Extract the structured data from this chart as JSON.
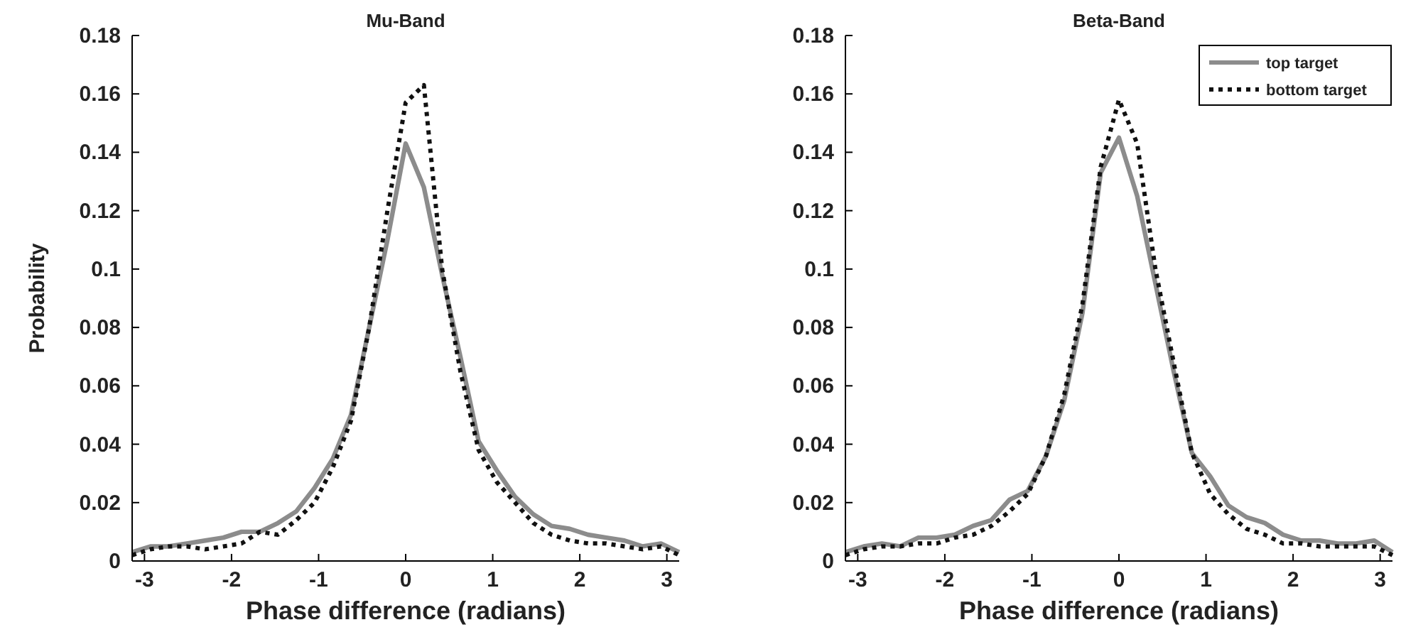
{
  "chart_data": [
    {
      "type": "line",
      "title": "Mu-Band",
      "xlabel": "Phase difference (radians)",
      "ylabel": "Probability",
      "x": [
        -3.1416,
        -2.9322,
        -2.7227,
        -2.5133,
        -2.3038,
        -2.0944,
        -1.885,
        -1.6755,
        -1.4661,
        -1.2566,
        -1.0472,
        -0.8378,
        -0.6283,
        -0.4189,
        -0.2094,
        0,
        0.2094,
        0.4189,
        0.6283,
        0.8378,
        1.0472,
        1.2566,
        1.4661,
        1.6755,
        1.885,
        2.0944,
        2.3038,
        2.5133,
        2.7227,
        2.9322,
        3.1416
      ],
      "series": [
        {
          "color": "#8c8c8c",
          "line_style": "solid",
          "values": [
            0.003,
            0.005,
            0.005,
            0.006,
            0.007,
            0.008,
            0.01,
            0.01,
            0.013,
            0.017,
            0.025,
            0.035,
            0.05,
            0.08,
            0.11,
            0.143,
            0.128,
            0.098,
            0.07,
            0.041,
            0.031,
            0.022,
            0.016,
            0.012,
            0.011,
            0.009,
            0.008,
            0.007,
            0.005,
            0.006,
            0.003
          ]
        },
        {
          "color": "#111111",
          "line_style": "dotted",
          "values": [
            0.002,
            0.004,
            0.005,
            0.005,
            0.004,
            0.005,
            0.006,
            0.01,
            0.009,
            0.014,
            0.02,
            0.032,
            0.048,
            0.08,
            0.12,
            0.157,
            0.163,
            0.1,
            0.065,
            0.038,
            0.027,
            0.02,
            0.013,
            0.009,
            0.007,
            0.006,
            0.006,
            0.005,
            0.004,
            0.005,
            0.002
          ]
        }
      ],
      "xlim": [
        -3.1416,
        3.1416
      ],
      "xticks": [
        -3,
        -2,
        -1,
        0,
        1,
        2,
        3
      ],
      "ylim": [
        0,
        0.18
      ],
      "yticks": [
        0,
        0.02,
        0.04,
        0.06,
        0.08,
        0.1,
        0.12,
        0.14,
        0.16,
        0.18
      ],
      "legend": false
    },
    {
      "type": "line",
      "title": "Beta-Band",
      "xlabel": "Phase difference (radians)",
      "x": [
        -3.1416,
        -2.9322,
        -2.7227,
        -2.5133,
        -2.3038,
        -2.0944,
        -1.885,
        -1.6755,
        -1.4661,
        -1.2566,
        -1.0472,
        -0.8378,
        -0.6283,
        -0.4189,
        -0.2094,
        0,
        0.2094,
        0.4189,
        0.6283,
        0.8378,
        1.0472,
        1.2566,
        1.4661,
        1.6755,
        1.885,
        2.0944,
        2.3038,
        2.5133,
        2.7227,
        2.9322,
        3.1416
      ],
      "series": [
        {
          "name": "top target",
          "color": "#8c8c8c",
          "line_style": "solid",
          "values": [
            0.003,
            0.005,
            0.006,
            0.005,
            0.008,
            0.008,
            0.009,
            0.012,
            0.014,
            0.021,
            0.024,
            0.036,
            0.055,
            0.085,
            0.133,
            0.145,
            0.125,
            0.095,
            0.065,
            0.037,
            0.029,
            0.019,
            0.015,
            0.013,
            0.009,
            0.007,
            0.007,
            0.006,
            0.006,
            0.007,
            0.003
          ]
        },
        {
          "name": "bottom target",
          "color": "#111111",
          "line_style": "dotted",
          "values": [
            0.002,
            0.004,
            0.005,
            0.005,
            0.006,
            0.006,
            0.008,
            0.009,
            0.012,
            0.017,
            0.023,
            0.036,
            0.057,
            0.088,
            0.135,
            0.158,
            0.143,
            0.1,
            0.068,
            0.037,
            0.023,
            0.016,
            0.011,
            0.009,
            0.006,
            0.006,
            0.005,
            0.005,
            0.005,
            0.005,
            0.002
          ]
        }
      ],
      "xlim": [
        -3.1416,
        3.1416
      ],
      "xticks": [
        -3,
        -2,
        -1,
        0,
        1,
        2,
        3
      ],
      "ylim": [
        0,
        0.18
      ],
      "yticks": [
        0,
        0.02,
        0.04,
        0.06,
        0.08,
        0.1,
        0.12,
        0.14,
        0.16,
        0.18
      ],
      "legend": "top right"
    }
  ]
}
